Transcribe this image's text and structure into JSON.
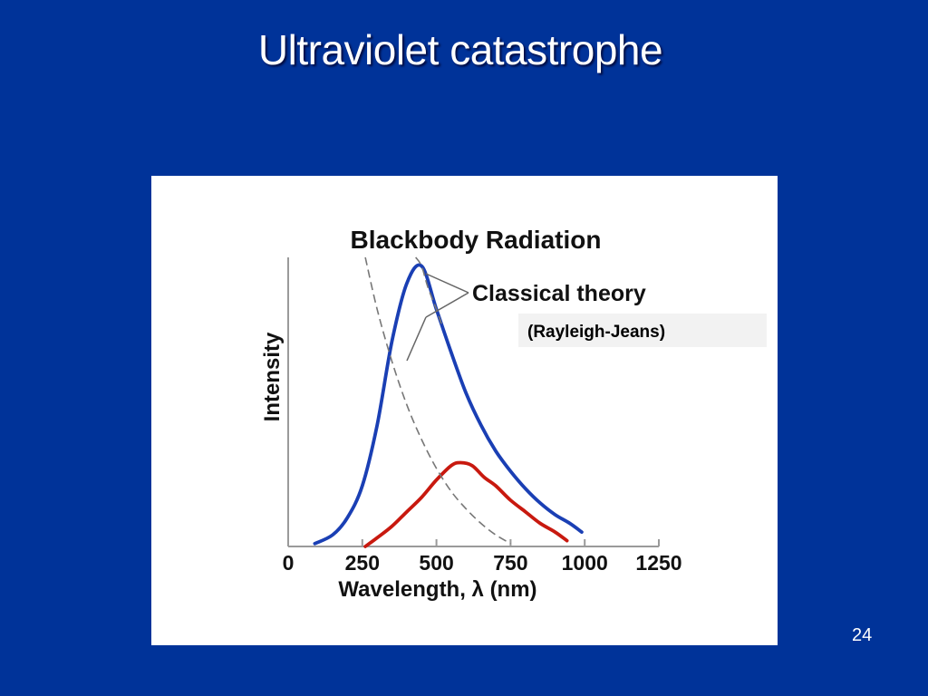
{
  "slide": {
    "title": "Ultraviolet catastrophe",
    "page_number": "24"
  },
  "chart_data": {
    "type": "line",
    "title": "Blackbody Radiation",
    "xlabel": "Wavelength, λ (nm)",
    "ylabel": "Intensity",
    "xlim": [
      0,
      1250
    ],
    "ylim": [
      0,
      1
    ],
    "x_ticks": [
      "0",
      "250",
      "500",
      "750",
      "1000",
      "1250"
    ],
    "y_ticks": [],
    "grid": false,
    "annotations": [
      {
        "text": "Classical theory",
        "target": "dashed curves"
      },
      {
        "text": "(Rayleigh-Jeans)",
        "target": "dashed curves"
      }
    ],
    "series": [
      {
        "color": "#1a3fb4",
        "style": "solid",
        "x": [
          90,
          150,
          200,
          250,
          300,
          350,
          400,
          450,
          500,
          550,
          600,
          650,
          700,
          750,
          800,
          850,
          900,
          950,
          990
        ],
        "y": [
          0.01,
          0.04,
          0.1,
          0.21,
          0.42,
          0.71,
          0.91,
          0.97,
          0.82,
          0.67,
          0.53,
          0.42,
          0.33,
          0.26,
          0.2,
          0.15,
          0.11,
          0.08,
          0.05
        ]
      },
      {
        "color": "#c8190f",
        "style": "solid",
        "x": [
          260,
          300,
          350,
          400,
          450,
          500,
          550,
          580,
          620,
          660,
          700,
          750,
          800,
          850,
          900,
          940
        ],
        "y": [
          0.0,
          0.03,
          0.07,
          0.12,
          0.17,
          0.23,
          0.28,
          0.29,
          0.28,
          0.24,
          0.21,
          0.16,
          0.12,
          0.08,
          0.05,
          0.02
        ]
      },
      {
        "color": "#777777",
        "style": "dashed",
        "x": [
          260,
          300,
          350,
          400,
          450,
          500,
          550,
          600,
          650,
          700,
          750
        ],
        "y": [
          1.0,
          0.82,
          0.64,
          0.49,
          0.37,
          0.27,
          0.19,
          0.13,
          0.08,
          0.04,
          0.01
        ]
      },
      {
        "color": "#777777",
        "style": "dashed",
        "x": [
          430,
          450,
          470,
          500,
          520
        ],
        "y": [
          1.0,
          0.97,
          0.9,
          0.82,
          0.76
        ]
      }
    ]
  }
}
